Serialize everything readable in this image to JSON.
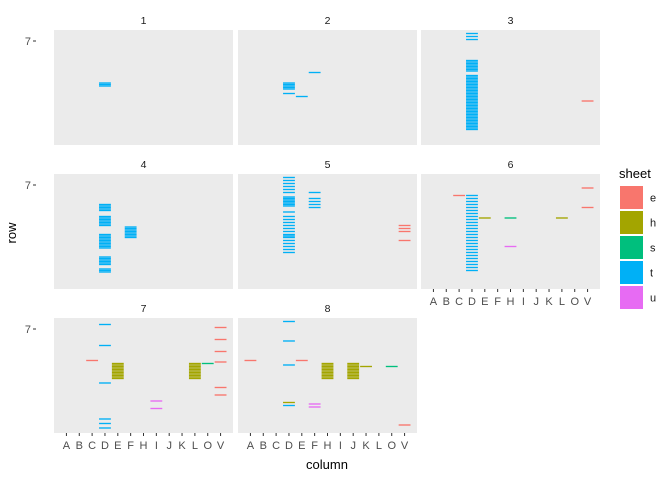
{
  "chart_data": {
    "type": "heatmap",
    "title": "",
    "xlabel": "column",
    "ylabel": "row",
    "legend_title": "sheet",
    "legend_position": "right",
    "x_categories": [
      "A",
      "B",
      "C",
      "D",
      "E",
      "F",
      "H",
      "I",
      "J",
      "K",
      "L",
      "O",
      "V"
    ],
    "y_tick_label": "7",
    "y_tick_value": 7,
    "facet_order": [
      "1",
      "2",
      "3",
      "4",
      "5",
      "6",
      "7",
      "8"
    ],
    "sheets": [
      {
        "name": "e",
        "color": "#F8766D"
      },
      {
        "name": "h",
        "color": "#A3A500"
      },
      {
        "name": "s",
        "color": "#00BF7D"
      },
      {
        "name": "t",
        "color": "#00B0F6"
      },
      {
        "name": "u",
        "color": "#E76BF3"
      }
    ],
    "facets": [
      {
        "label": "1",
        "cells": [
          {
            "col": "D",
            "sheet": "t",
            "rows": [
              35,
              36,
              37
            ]
          }
        ]
      },
      {
        "label": "2",
        "cells": [
          {
            "col": "D",
            "sheet": "t",
            "rows": [
              35,
              36,
              37,
              38,
              39,
              42
            ]
          },
          {
            "col": "E",
            "sheet": "t",
            "rows": [
              44
            ]
          },
          {
            "col": "F",
            "sheet": "t",
            "rows": [
              28
            ]
          }
        ]
      },
      {
        "label": "3",
        "cells": [
          {
            "col": "D",
            "sheet": "t",
            "rows": [
              2,
              4,
              6,
              20,
              21,
              22,
              23,
              24,
              25,
              26,
              27,
              30,
              31,
              32,
              33,
              34,
              35,
              36,
              37,
              38,
              39,
              40,
              41,
              42,
              43,
              44,
              45,
              46,
              47,
              48,
              49,
              50,
              51,
              52,
              53,
              54,
              55,
              56,
              57,
              58,
              59,
              60,
              61,
              62,
              63,
              64,
              65,
              66
            ]
          },
          {
            "col": "V",
            "sheet": "e",
            "rows": [
              47
            ]
          }
        ]
      },
      {
        "label": "4",
        "cells": [
          {
            "col": "D",
            "sheet": "t",
            "rows": [
              20,
              21,
              22,
              23,
              24,
              28,
              29,
              30,
              31,
              32,
              33,
              34,
              40,
              41,
              42,
              43,
              44,
              45,
              46,
              47,
              48,
              49,
              55,
              56,
              57,
              58,
              59,
              60,
              63,
              64,
              65
            ]
          },
          {
            "col": "F",
            "sheet": "t",
            "rows": [
              35,
              36,
              37,
              38,
              39,
              40,
              41,
              42
            ]
          }
        ]
      },
      {
        "label": "5",
        "cells": [
          {
            "col": "D",
            "sheet": "t",
            "rows": [
              2,
              4,
              6,
              8,
              10,
              12,
              15,
              16,
              17,
              18,
              19,
              20,
              21,
              25,
              28,
              30,
              32,
              34,
              36,
              38,
              40,
              41,
              42,
              44,
              46,
              48,
              50,
              52
            ]
          },
          {
            "col": "F",
            "sheet": "t",
            "rows": [
              12,
              16,
              18,
              20,
              22
            ]
          },
          {
            "col": "V",
            "sheet": "e",
            "rows": [
              34,
              36,
              38,
              44
            ]
          }
        ]
      },
      {
        "label": "6",
        "cells": [
          {
            "col": "C",
            "sheet": "e",
            "rows": [
              14
            ]
          },
          {
            "col": "D",
            "sheet": "t",
            "rows": [
              14,
              16,
              18,
              20,
              22,
              24,
              26,
              28,
              30,
              32,
              34,
              36,
              38,
              40,
              42,
              44,
              46,
              48,
              50,
              52,
              54,
              56,
              58,
              60,
              62,
              64
            ]
          },
          {
            "col": "E",
            "sheet": "h",
            "rows": [
              29
            ]
          },
          {
            "col": "H",
            "sheet": "s",
            "rows": [
              29
            ]
          },
          {
            "col": "L",
            "sheet": "h",
            "rows": [
              29
            ]
          },
          {
            "col": "H",
            "sheet": "u",
            "rows": [
              48
            ]
          },
          {
            "col": "V",
            "sheet": "e",
            "rows": [
              9,
              22
            ]
          }
        ]
      },
      {
        "label": "7",
        "cells": [
          {
            "col": "C",
            "sheet": "e",
            "rows": [
              28
            ]
          },
          {
            "col": "D",
            "sheet": "t",
            "rows": [
              4,
              18,
              43,
              67,
              70,
              73
            ]
          },
          {
            "col": "E",
            "sheet": "h",
            "rows": [
              30,
              31,
              32,
              33,
              34,
              35,
              36,
              37,
              38,
              39,
              40
            ]
          },
          {
            "col": "L",
            "sheet": "h",
            "rows": [
              30,
              31,
              32,
              33,
              34,
              35,
              36,
              37,
              38,
              39,
              40
            ]
          },
          {
            "col": "O",
            "sheet": "s",
            "rows": [
              30
            ]
          },
          {
            "col": "I",
            "sheet": "u",
            "rows": [
              55,
              60
            ]
          },
          {
            "col": "V",
            "sheet": "e",
            "rows": [
              6,
              14,
              22,
              29,
              46,
              51
            ]
          }
        ]
      },
      {
        "label": "8",
        "cells": [
          {
            "col": "A",
            "sheet": "e",
            "rows": [
              28
            ]
          },
          {
            "col": "D",
            "sheet": "t",
            "rows": [
              2,
              15,
              31,
              58
            ]
          },
          {
            "col": "D",
            "sheet": "h",
            "rows": [
              56
            ]
          },
          {
            "col": "E",
            "sheet": "e",
            "rows": [
              28
            ]
          },
          {
            "col": "F",
            "sheet": "u",
            "rows": [
              57,
              59
            ]
          },
          {
            "col": "H",
            "sheet": "h",
            "rows": [
              30,
              31,
              32,
              33,
              34,
              35,
              36,
              37,
              38,
              39,
              40
            ]
          },
          {
            "col": "J",
            "sheet": "h",
            "rows": [
              30,
              31,
              32,
              33,
              34,
              35,
              36,
              37,
              38,
              39,
              40
            ]
          },
          {
            "col": "K",
            "sheet": "h",
            "rows": [
              32
            ]
          },
          {
            "col": "O",
            "sheet": "s",
            "rows": [
              32
            ]
          },
          {
            "col": "V",
            "sheet": "e",
            "rows": [
              71
            ]
          }
        ]
      }
    ]
  }
}
